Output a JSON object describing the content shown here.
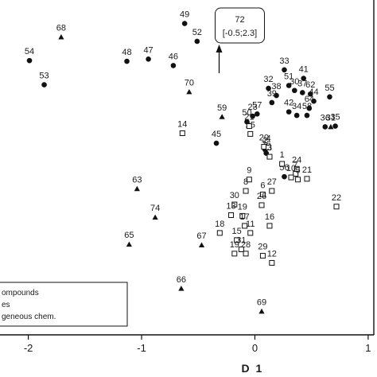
{
  "chart_data": {
    "type": "scatter",
    "xlabel": "D 1",
    "xticks": [
      "-2",
      "-1",
      "0",
      "1"
    ],
    "xlim": [
      -2.25,
      1.05
    ],
    "ylim": [
      -2.15,
      2.55
    ],
    "legend": {
      "placement": "bottom-left",
      "entries": [
        "ompounds",
        "es",
        "geneous chem."
      ]
    },
    "callout": {
      "id": "72",
      "text": "[-0.5;2.3]"
    },
    "series": [
      {
        "marker": "circle",
        "points": [
          {
            "id": "54",
            "x": -1.99,
            "y": 1.7
          },
          {
            "id": "53",
            "x": -1.86,
            "y": 1.36
          },
          {
            "id": "49",
            "x": -0.62,
            "y": 2.22
          },
          {
            "id": "52",
            "x": -0.51,
            "y": 1.97
          },
          {
            "id": "47",
            "x": -0.94,
            "y": 1.72
          },
          {
            "id": "48",
            "x": -1.13,
            "y": 1.69
          },
          {
            "id": "46",
            "x": -0.72,
            "y": 1.63
          },
          {
            "id": "45",
            "x": -0.34,
            "y": 0.54
          },
          {
            "id": "33",
            "x": 0.26,
            "y": 1.57
          },
          {
            "id": "41",
            "x": 0.43,
            "y": 1.45
          },
          {
            "id": "51",
            "x": 0.3,
            "y": 1.35
          },
          {
            "id": "32",
            "x": 0.12,
            "y": 1.31
          },
          {
            "id": "30",
            "x": 0.35,
            "y": 1.28
          },
          {
            "id": "37",
            "x": 0.42,
            "y": 1.25
          },
          {
            "id": "62",
            "x": 0.49,
            "y": 1.23
          },
          {
            "id": "38",
            "x": 0.19,
            "y": 1.21
          },
          {
            "id": "55",
            "x": 0.66,
            "y": 1.19
          },
          {
            "id": "39",
            "x": 0.15,
            "y": 1.11
          },
          {
            "id": "44",
            "x": 0.52,
            "y": 1.13
          },
          {
            "id": "64",
            "x": 0.48,
            "y": 1.03
          },
          {
            "id": "42",
            "x": 0.3,
            "y": 0.98
          },
          {
            "id": "34",
            "x": 0.37,
            "y": 0.93
          },
          {
            "id": "58",
            "x": 0.46,
            "y": 0.93
          },
          {
            "id": "57",
            "x": 0.02,
            "y": 0.95
          },
          {
            "id": "23",
            "x": -0.02,
            "y": 0.92
          },
          {
            "id": "36",
            "x": 0.62,
            "y": 0.77
          },
          {
            "id": "35",
            "x": 0.71,
            "y": 0.78
          },
          {
            "id": "50",
            "x": -0.07,
            "y": 0.84
          },
          {
            "id": "2",
            "x": 0.09,
            "y": 0.45
          },
          {
            "id": "26",
            "x": 0.1,
            "y": 0.4
          },
          {
            "id": "56",
            "x": 0.26,
            "y": 0.07
          }
        ]
      },
      {
        "marker": "triangle",
        "points": [
          {
            "id": "68",
            "x": -1.71,
            "y": 2.03
          },
          {
            "id": "70",
            "x": -0.58,
            "y": 1.26
          },
          {
            "id": "59",
            "x": -0.29,
            "y": 0.91
          },
          {
            "id": "31",
            "x": 0.67,
            "y": 0.77
          },
          {
            "id": "63",
            "x": -1.04,
            "y": -0.1
          },
          {
            "id": "74",
            "x": -0.88,
            "y": -0.5
          },
          {
            "id": "65",
            "x": -1.11,
            "y": -0.88
          },
          {
            "id": "67",
            "x": -0.47,
            "y": -0.89
          },
          {
            "id": "66",
            "x": -0.65,
            "y": -1.5
          },
          {
            "id": "69",
            "x": 0.06,
            "y": -1.82
          }
        ]
      },
      {
        "marker": "square",
        "points": [
          {
            "id": "14",
            "x": -0.64,
            "y": 0.68
          },
          {
            "id": "25",
            "x": -0.04,
            "y": 0.67
          },
          {
            "id": "21",
            "x": -0.05,
            "y": 0.78
          },
          {
            "id": "20",
            "x": 0.08,
            "y": 0.49
          },
          {
            "id": "4",
            "x": 0.12,
            "y": 0.48
          },
          {
            "id": "3",
            "x": 0.13,
            "y": 0.35
          },
          {
            "id": "1",
            "x": 0.24,
            "y": 0.25
          },
          {
            "id": "24",
            "x": 0.37,
            "y": 0.18
          },
          {
            "id": "7",
            "x": 0.36,
            "y": 0.11
          },
          {
            "id": "10",
            "x": 0.32,
            "y": 0.06
          },
          {
            "id": "5",
            "x": 0.38,
            "y": 0.03
          },
          {
            "id": "21",
            "x": 0.46,
            "y": 0.04
          },
          {
            "id": "22",
            "x": 0.72,
            "y": -0.35
          },
          {
            "id": "9",
            "x": -0.05,
            "y": 0.03
          },
          {
            "id": "8",
            "x": -0.08,
            "y": -0.13
          },
          {
            "id": "27",
            "x": 0.15,
            "y": -0.13
          },
          {
            "id": "6",
            "x": 0.07,
            "y": -0.18
          },
          {
            "id": "30",
            "x": -0.18,
            "y": -0.32
          },
          {
            "id": "26",
            "x": 0.06,
            "y": -0.33
          },
          {
            "id": "13",
            "x": -0.21,
            "y": -0.47
          },
          {
            "id": "19",
            "x": -0.11,
            "y": -0.48
          },
          {
            "id": "18",
            "x": -0.31,
            "y": -0.72
          },
          {
            "id": "17",
            "x": -0.09,
            "y": -0.62
          },
          {
            "id": "16",
            "x": 0.13,
            "y": -0.62
          },
          {
            "id": "11",
            "x": -0.04,
            "y": -0.72
          },
          {
            "id": "15",
            "x": -0.16,
            "y": -0.82
          },
          {
            "id": "31",
            "x": -0.12,
            "y": -0.95
          },
          {
            "id": "19",
            "x": -0.18,
            "y": -1.01
          },
          {
            "id": "28",
            "x": -0.08,
            "y": -1.01
          },
          {
            "id": "29",
            "x": 0.07,
            "y": -1.04
          },
          {
            "id": "12",
            "x": 0.15,
            "y": -1.14
          }
        ]
      }
    ]
  }
}
